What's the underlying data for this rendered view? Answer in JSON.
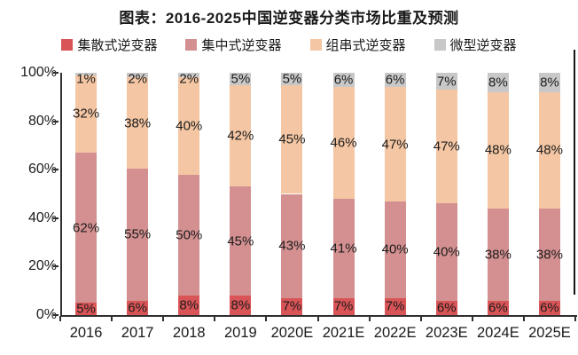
{
  "title": "图表：2016-2025中国逆变器分类市场比重及预测",
  "colors": {
    "axis": "#2f2f2f",
    "text": "#1a1a1a",
    "background": "#ffffff"
  },
  "y_axis": {
    "ticks": [
      "100%",
      "80%",
      "60%",
      "40%",
      "20%",
      "0%"
    ]
  },
  "chart_data": {
    "type": "bar",
    "stacked": true,
    "title": "图表：2016-2025中国逆变器分类市场比重及预测",
    "categories": [
      "2016",
      "2017",
      "2018",
      "2019",
      "2020E",
      "2021E",
      "2022E",
      "2023E",
      "2024E",
      "2025E"
    ],
    "series": [
      {
        "name": "集散式逆变器",
        "color": "#d95456",
        "values": [
          5,
          6,
          8,
          8,
          7,
          7,
          7,
          6,
          6,
          6
        ]
      },
      {
        "name": "集中式逆变器",
        "color": "#d49091",
        "values": [
          62,
          55,
          50,
          45,
          43,
          41,
          40,
          40,
          38,
          38
        ]
      },
      {
        "name": "组串式逆变器",
        "color": "#f4c6a3",
        "values": [
          32,
          38,
          40,
          42,
          45,
          46,
          47,
          47,
          48,
          48
        ]
      },
      {
        "name": "微型逆变器",
        "color": "#c8c8c8",
        "values": [
          1,
          2,
          2,
          5,
          5,
          6,
          6,
          7,
          8,
          8
        ]
      }
    ],
    "ylim": [
      0,
      100
    ],
    "y_tick_step": 20,
    "grid": false,
    "legend_position": "top",
    "value_label_format": "{v}%"
  }
}
